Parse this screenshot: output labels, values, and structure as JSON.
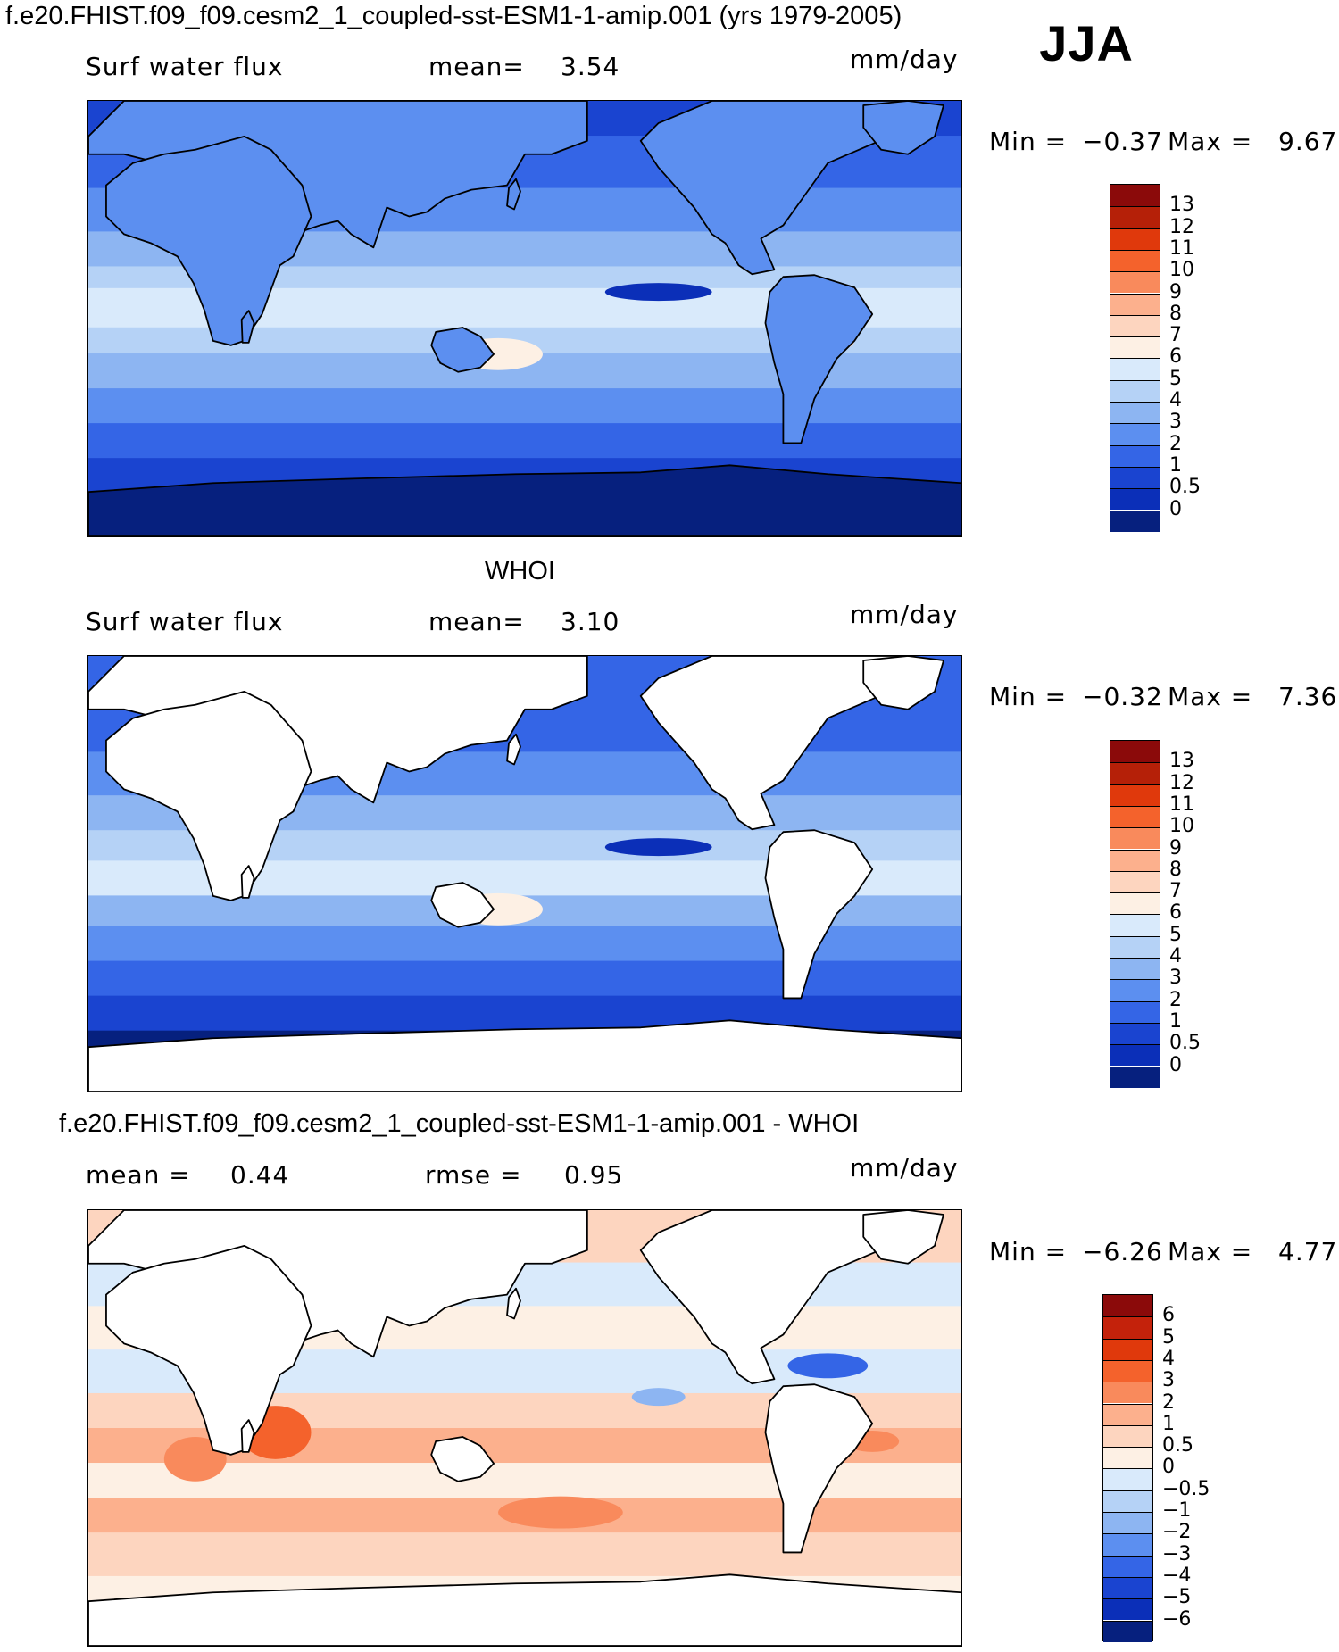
{
  "header": {
    "title": "f.e20.FHIST.f09_f09.cesm2_1_coupled-sst-ESM1-1-amip.001 (yrs 1979-2005)",
    "season": "JJA"
  },
  "panels": [
    {
      "id": "model",
      "title": "",
      "left_label": "Surf water flux",
      "stat1_label": "mean=",
      "stat1_value": "3.54",
      "stat2_label": "",
      "stat2_value": "",
      "units": "mm/day",
      "min_label": "Min =",
      "min_value": "−0.37",
      "max_label": "Max =",
      "max_value": "9.67",
      "palette": "sequential",
      "colorbar_labels": [
        "13",
        "12",
        "11",
        "10",
        "9",
        "8",
        "7",
        "6",
        "5",
        "4",
        "3",
        "2",
        "1",
        "0.5",
        "0"
      ]
    },
    {
      "id": "obs",
      "title": "WHOI",
      "left_label": "Surf water flux",
      "stat1_label": "mean=",
      "stat1_value": "3.10",
      "stat2_label": "",
      "stat2_value": "",
      "units": "mm/day",
      "min_label": "Min =",
      "min_value": "−0.32",
      "max_label": "Max =",
      "max_value": "7.36",
      "palette": "sequential",
      "colorbar_labels": [
        "13",
        "12",
        "11",
        "10",
        "9",
        "8",
        "7",
        "6",
        "5",
        "4",
        "3",
        "2",
        "1",
        "0.5",
        "0"
      ]
    },
    {
      "id": "diff",
      "title": "f.e20.FHIST.f09_f09.cesm2_1_coupled-sst-ESM1-1-amip.001 - WHOI",
      "left_label": "",
      "stat1_label": "mean =",
      "stat1_value": "0.44",
      "stat2_label": "rmse =",
      "stat2_value": "0.95",
      "units": "mm/day",
      "min_label": "Min =",
      "min_value": "−6.26",
      "max_label": "Max =",
      "max_value": "4.77",
      "palette": "diverging",
      "colorbar_labels": [
        "6",
        "5",
        "4",
        "3",
        "2",
        "1",
        "0.5",
        "0",
        "−0.5",
        "−1",
        "−2",
        "−3",
        "−4",
        "−5",
        "−6"
      ]
    }
  ],
  "colors": {
    "sequential": [
      "#8b0a0a",
      "#b52008",
      "#e0390c",
      "#f4622c",
      "#f98a5c",
      "#fcb08d",
      "#fdd5bf",
      "#fdf0e4",
      "#d9eafb",
      "#b5d2f6",
      "#8db5f2",
      "#5c8ff0",
      "#3465e6",
      "#1a44d0",
      "#0b2fb8",
      "#06207e"
    ],
    "diverging": [
      "#8b0a0a",
      "#c4220b",
      "#e0390c",
      "#f4622c",
      "#f98a5c",
      "#fcb08d",
      "#fdd5bf",
      "#fdf0e4",
      "#d9eafb",
      "#b5d2f6",
      "#8db5f2",
      "#5c8ff0",
      "#3465e6",
      "#1a44d0",
      "#0b2fb8",
      "#06207e"
    ],
    "land": "#ffffff",
    "coastline": "#000000"
  },
  "chart_data": [
    {
      "type": "heatmap",
      "title": "Surf water flux",
      "units": "mm/day",
      "mean": 3.54,
      "min": -0.37,
      "max": 9.67,
      "levels": [
        0,
        0.5,
        1,
        2,
        3,
        4,
        5,
        6,
        7,
        8,
        9,
        10,
        11,
        12,
        13
      ],
      "land_masked": false
    },
    {
      "type": "heatmap",
      "title": "WHOI",
      "units": "mm/day",
      "mean": 3.1,
      "min": -0.32,
      "max": 7.36,
      "levels": [
        0,
        0.5,
        1,
        2,
        3,
        4,
        5,
        6,
        7,
        8,
        9,
        10,
        11,
        12,
        13
      ],
      "land_masked": true
    },
    {
      "type": "heatmap",
      "title": "f.e20.FHIST.f09_f09.cesm2_1_coupled-sst-ESM1-1-amip.001 - WHOI",
      "units": "mm/day",
      "mean": 0.44,
      "rmse": 0.95,
      "min": -6.26,
      "max": 4.77,
      "levels": [
        -6,
        -5,
        -4,
        -3,
        -2,
        -1,
        -0.5,
        0,
        0.5,
        1,
        2,
        3,
        4,
        5,
        6
      ],
      "land_masked": true
    }
  ]
}
